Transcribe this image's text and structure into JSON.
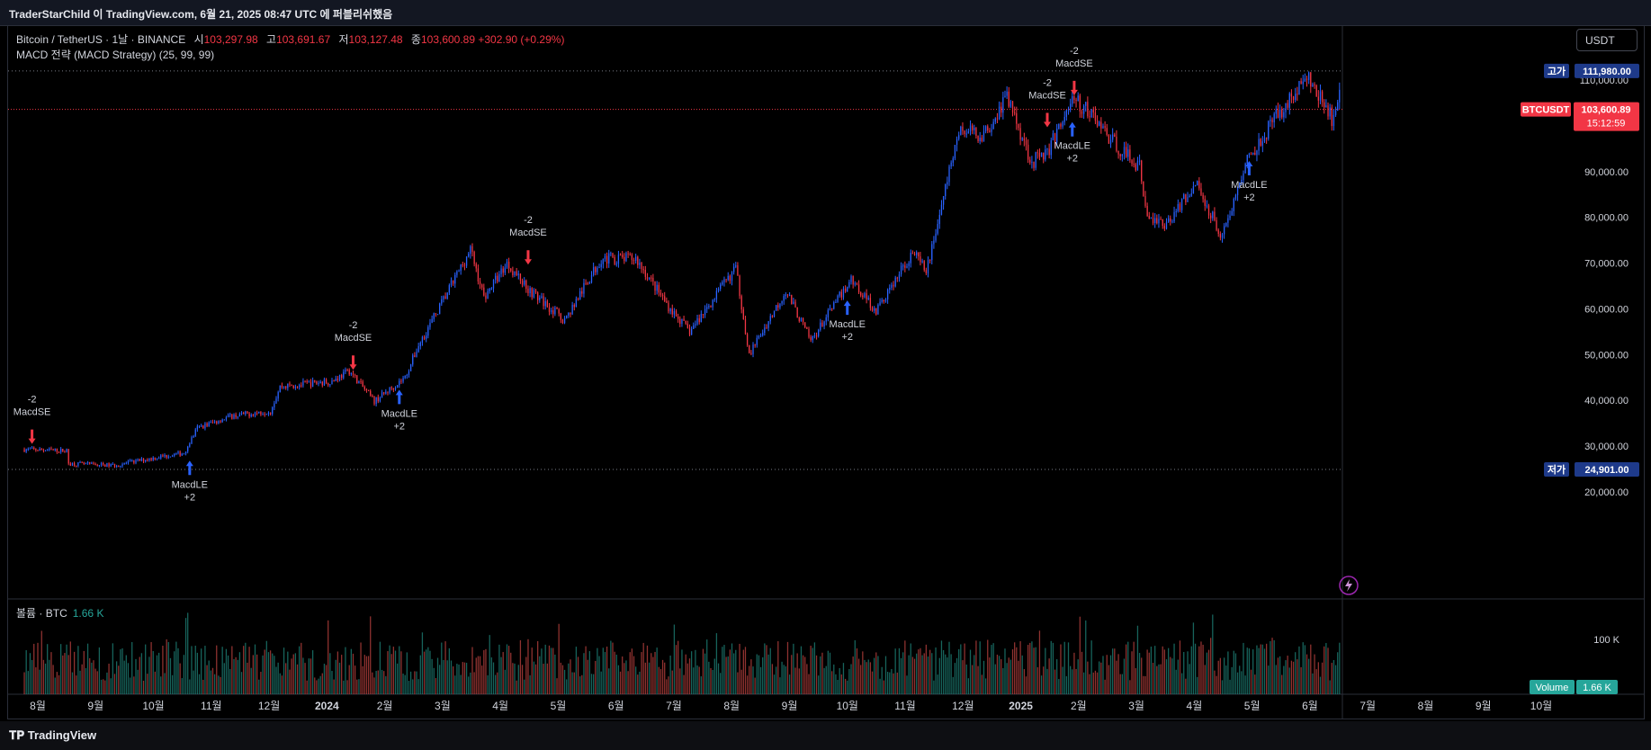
{
  "header": {
    "published": "TraderStarChild 이 TradingView.com, 6월 21, 2025 08:47 UTC 에 퍼블리쉬했음"
  },
  "currency_button": "USDT",
  "legend": {
    "symbol": "Bitcoin / TetherUS · 1날 · BINANCE",
    "open_label": "시",
    "open": "103,297.98",
    "high_label": "고",
    "high": "103,691.67",
    "low_label": "저",
    "low": "103,127.48",
    "close_label": "종",
    "close": "103,600.89",
    "change": "+302.90 (+0.29%)",
    "strategy": "MACD 전략 (MACD Strategy) (25, 99, 99)"
  },
  "volume_legend": {
    "label": "볼륨 · BTC",
    "value": "1.66 K"
  },
  "footer": {
    "logo": "TradingView"
  },
  "colors": {
    "up": "#2962ff",
    "down": "#f23645",
    "vol_up": "#26a69a",
    "vol_down": "#ef5350"
  },
  "chart_data": {
    "type": "candlestick",
    "symbol": "BTCUSDT",
    "interval": "1D",
    "price_axis": {
      "ticks": [
        20000,
        30000,
        40000,
        50000,
        60000,
        70000,
        80000,
        90000,
        100000,
        110000
      ],
      "labels": [
        "20,000.00",
        "30,000.00",
        "40,000.00",
        "50,000.00",
        "60,000.00",
        "70,000.00",
        "80,000.00",
        "90,000.00",
        "100,000.00",
        "110,000.00"
      ]
    },
    "time_axis": {
      "labels": [
        "8월",
        "9월",
        "10월",
        "11월",
        "12월",
        "2024",
        "2월",
        "3월",
        "4월",
        "5월",
        "6월",
        "7월",
        "8월",
        "9월",
        "10월",
        "11월",
        "12월",
        "2025",
        "2월",
        "3월",
        "4월",
        "5월",
        "6월",
        "7월",
        "8월",
        "9월",
        "10월"
      ]
    },
    "price_path": [
      [
        "2023-07-25",
        29300
      ],
      [
        "2023-08-16",
        29000
      ],
      [
        "2023-08-17",
        26200
      ],
      [
        "2023-09-10",
        25800
      ],
      [
        "2023-10-01",
        27500
      ],
      [
        "2023-10-16",
        28500
      ],
      [
        "2023-10-23",
        34000
      ],
      [
        "2023-11-09",
        36500
      ],
      [
        "2023-11-30",
        37700
      ],
      [
        "2023-12-05",
        43000
      ],
      [
        "2024-01-01",
        44200
      ],
      [
        "2024-01-10",
        46500
      ],
      [
        "2024-01-23",
        39800
      ],
      [
        "2024-02-08",
        45000
      ],
      [
        "2024-02-15",
        52000
      ],
      [
        "2024-02-28",
        62000
      ],
      [
        "2024-03-13",
        73000
      ],
      [
        "2024-03-20",
        62500
      ],
      [
        "2024-04-01",
        70000
      ],
      [
        "2024-04-13",
        64000
      ],
      [
        "2024-05-01",
        57500
      ],
      [
        "2024-05-20",
        71000
      ],
      [
        "2024-06-07",
        71000
      ],
      [
        "2024-06-24",
        60500
      ],
      [
        "2024-07-05",
        55000
      ],
      [
        "2024-07-29",
        69000
      ],
      [
        "2024-08-05",
        50000
      ],
      [
        "2024-08-24",
        64000
      ],
      [
        "2024-09-06",
        53000
      ],
      [
        "2024-09-27",
        66500
      ],
      [
        "2024-10-10",
        59500
      ],
      [
        "2024-10-29",
        72500
      ],
      [
        "2024-11-05",
        68000
      ],
      [
        "2024-11-22",
        99000
      ],
      [
        "2024-12-05",
        98000
      ],
      [
        "2024-12-17",
        106500
      ],
      [
        "2024-12-30",
        92000
      ],
      [
        "2025-01-08",
        95000
      ],
      [
        "2025-01-20",
        106000
      ],
      [
        "2025-01-31",
        102000
      ],
      [
        "2025-02-10",
        96500
      ],
      [
        "2025-02-24",
        91000
      ],
      [
        "2025-02-28",
        80000
      ],
      [
        "2025-03-10",
        78500
      ],
      [
        "2025-03-25",
        87500
      ],
      [
        "2025-04-08",
        76000
      ],
      [
        "2025-04-22",
        93500
      ],
      [
        "2025-05-08",
        103000
      ],
      [
        "2025-05-22",
        110500
      ],
      [
        "2025-06-05",
        101000
      ],
      [
        "2025-06-10",
        110000
      ],
      [
        "2025-06-20",
        103600
      ]
    ],
    "high_line": {
      "label": "고가",
      "value": "111,980.00",
      "price": 111980
    },
    "low_line": {
      "label": "저가",
      "value": "24,901.00",
      "price": 24901
    },
    "current_price": {
      "label": "BTCUSDT",
      "value": "103,600.89",
      "countdown": "15:12:59",
      "price": 103600.89
    },
    "signals": [
      {
        "type": "short",
        "date": "2023-07-29",
        "price": 29300,
        "name": "MacdSE",
        "qty": "-2"
      },
      {
        "type": "long",
        "date": "2023-10-19",
        "price": 28000,
        "name": "MacdLE",
        "qty": "+2"
      },
      {
        "type": "short",
        "date": "2024-01-12",
        "price": 45500,
        "name": "MacdSE",
        "qty": "-2"
      },
      {
        "type": "long",
        "date": "2024-02-05",
        "price": 43500,
        "name": "MacdLE",
        "qty": "+2"
      },
      {
        "type": "short",
        "date": "2024-04-12",
        "price": 68500,
        "name": "MacdSE",
        "qty": "-2"
      },
      {
        "type": "long",
        "date": "2024-09-25",
        "price": 63000,
        "name": "MacdLE",
        "qty": "+2"
      },
      {
        "type": "short",
        "date": "2025-01-07",
        "price": 98500,
        "name": "MacdSE",
        "qty": "-2"
      },
      {
        "type": "short",
        "date": "2025-01-21",
        "price": 105500,
        "name": "MacdSE",
        "qty": "-2"
      },
      {
        "type": "long",
        "date": "2025-01-20",
        "price": 102000,
        "name": "MacdLE",
        "qty": "+2"
      },
      {
        "type": "long",
        "date": "2025-04-22",
        "price": 93500,
        "name": "MacdLE",
        "qty": "+2"
      }
    ],
    "volume": {
      "label": "Volume",
      "value": "1.66 K",
      "axis_ticks": [
        "100 K"
      ]
    }
  }
}
